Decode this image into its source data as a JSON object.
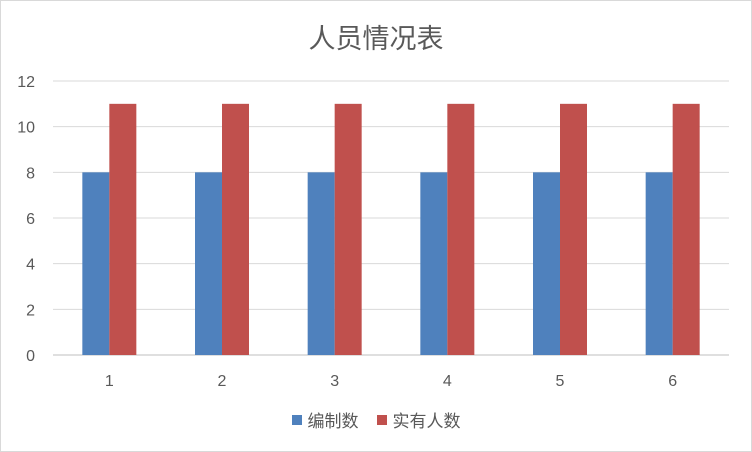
{
  "chart_data": {
    "type": "bar",
    "title": "人员情况表",
    "categories": [
      "1",
      "2",
      "3",
      "4",
      "5",
      "6"
    ],
    "series": [
      {
        "name": "编制数",
        "values": [
          8,
          8,
          8,
          8,
          8,
          8
        ],
        "color": "#4f81bd"
      },
      {
        "name": "实有人数",
        "values": [
          11,
          11,
          11,
          11,
          11,
          11
        ],
        "color": "#c0504d"
      }
    ],
    "xlabel": "",
    "ylabel": "",
    "ylim": [
      0,
      12
    ],
    "yticks": [
      0,
      2,
      4,
      6,
      8,
      10,
      12
    ],
    "grid": true,
    "legend_position": "bottom"
  }
}
